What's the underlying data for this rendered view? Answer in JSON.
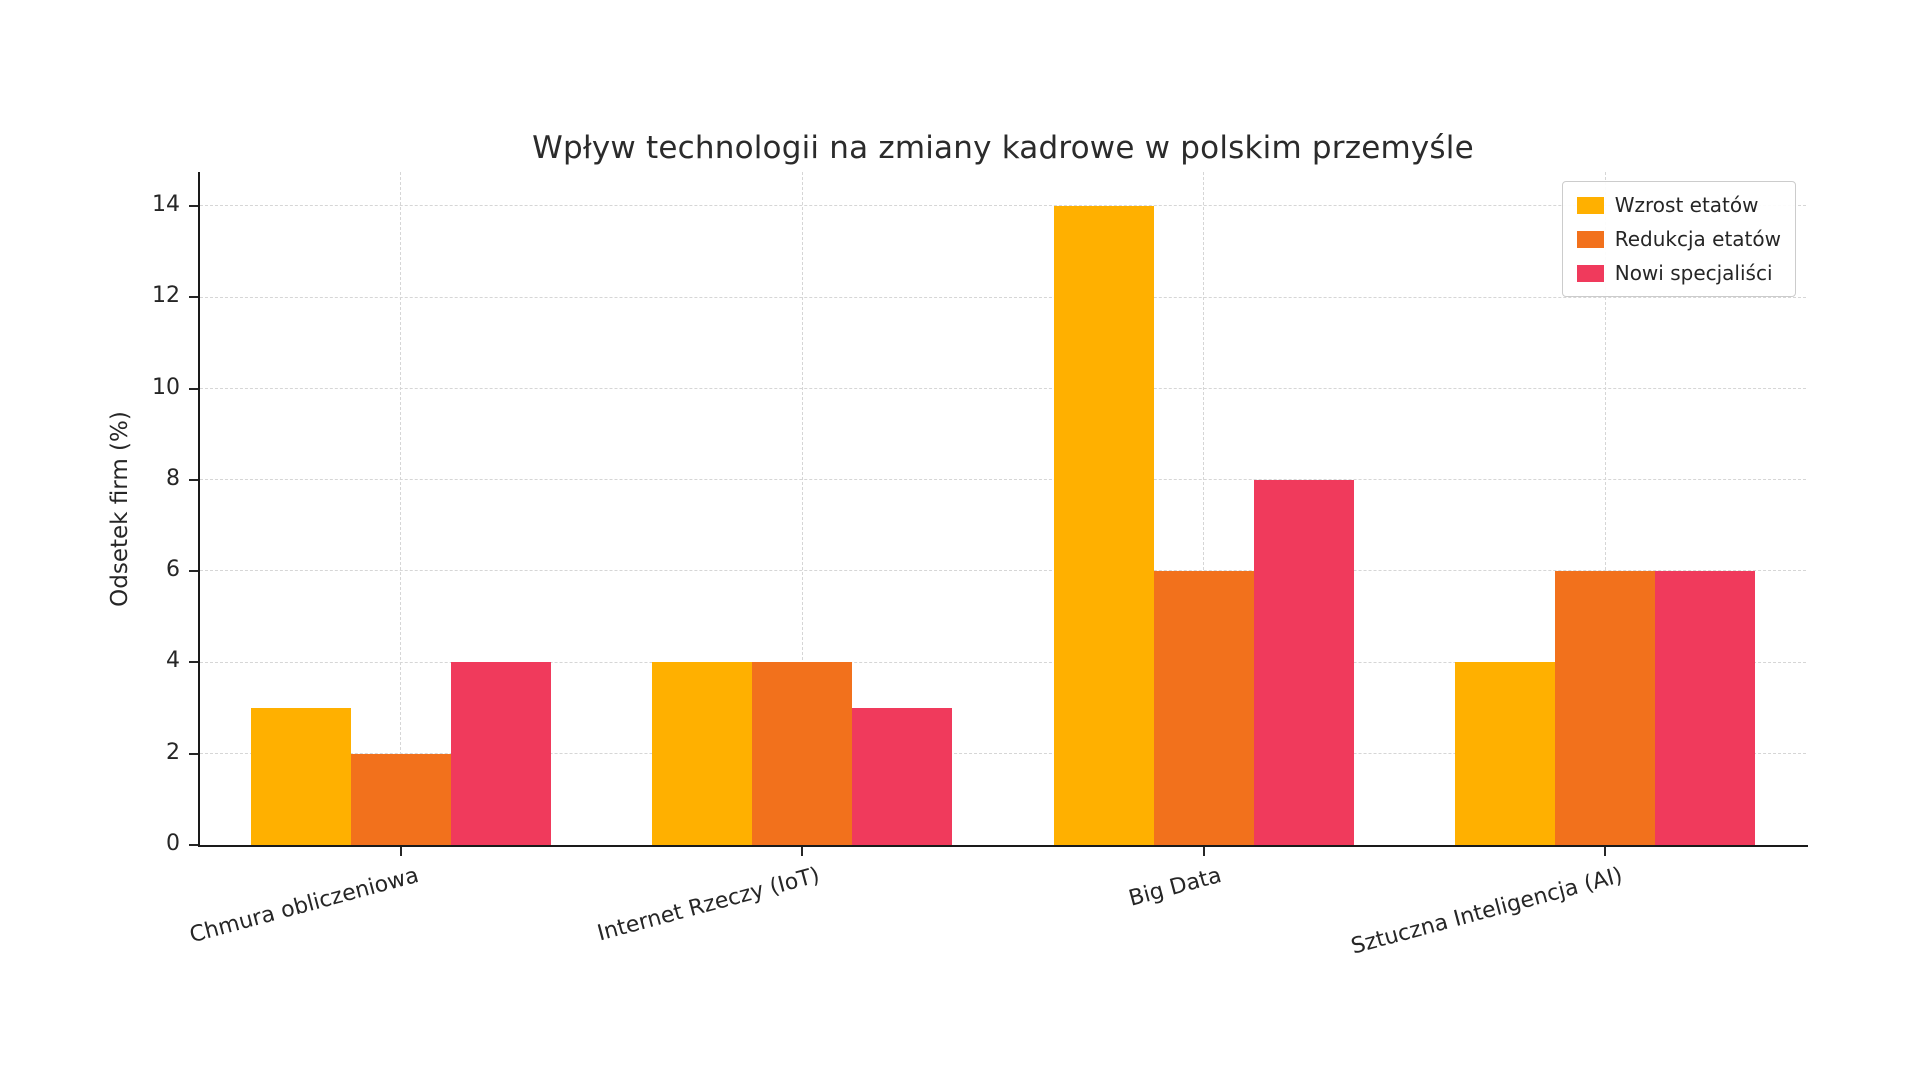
{
  "chart_data": {
    "type": "bar",
    "title": "Wpływ technologii na zmiany kadrowe w polskim przemyśle",
    "ylabel": "Odsetek firm (%)",
    "xlabel": "",
    "categories": [
      "Chmura obliczeniowa",
      "Internet Rzeczy (IoT)",
      "Big Data",
      "Sztuczna Inteligencja (AI)"
    ],
    "series": [
      {
        "name": "Wzrost etatów",
        "color": "#FFB000",
        "values": [
          3,
          4,
          14,
          4
        ]
      },
      {
        "name": "Redukcja etatów",
        "color": "#F2711C",
        "values": [
          2,
          4,
          6,
          6
        ]
      },
      {
        "name": "Nowi specjaliści",
        "color": "#F03A5C",
        "values": [
          4,
          3,
          8,
          6
        ]
      }
    ],
    "ylim": [
      0,
      14.75
    ],
    "yticks": [
      0,
      2,
      4,
      6,
      8,
      10,
      12,
      14
    ],
    "grid": "dashed",
    "grid_color": "#d6d6d6",
    "legend_position": "top-right",
    "background": "#ffffff"
  }
}
